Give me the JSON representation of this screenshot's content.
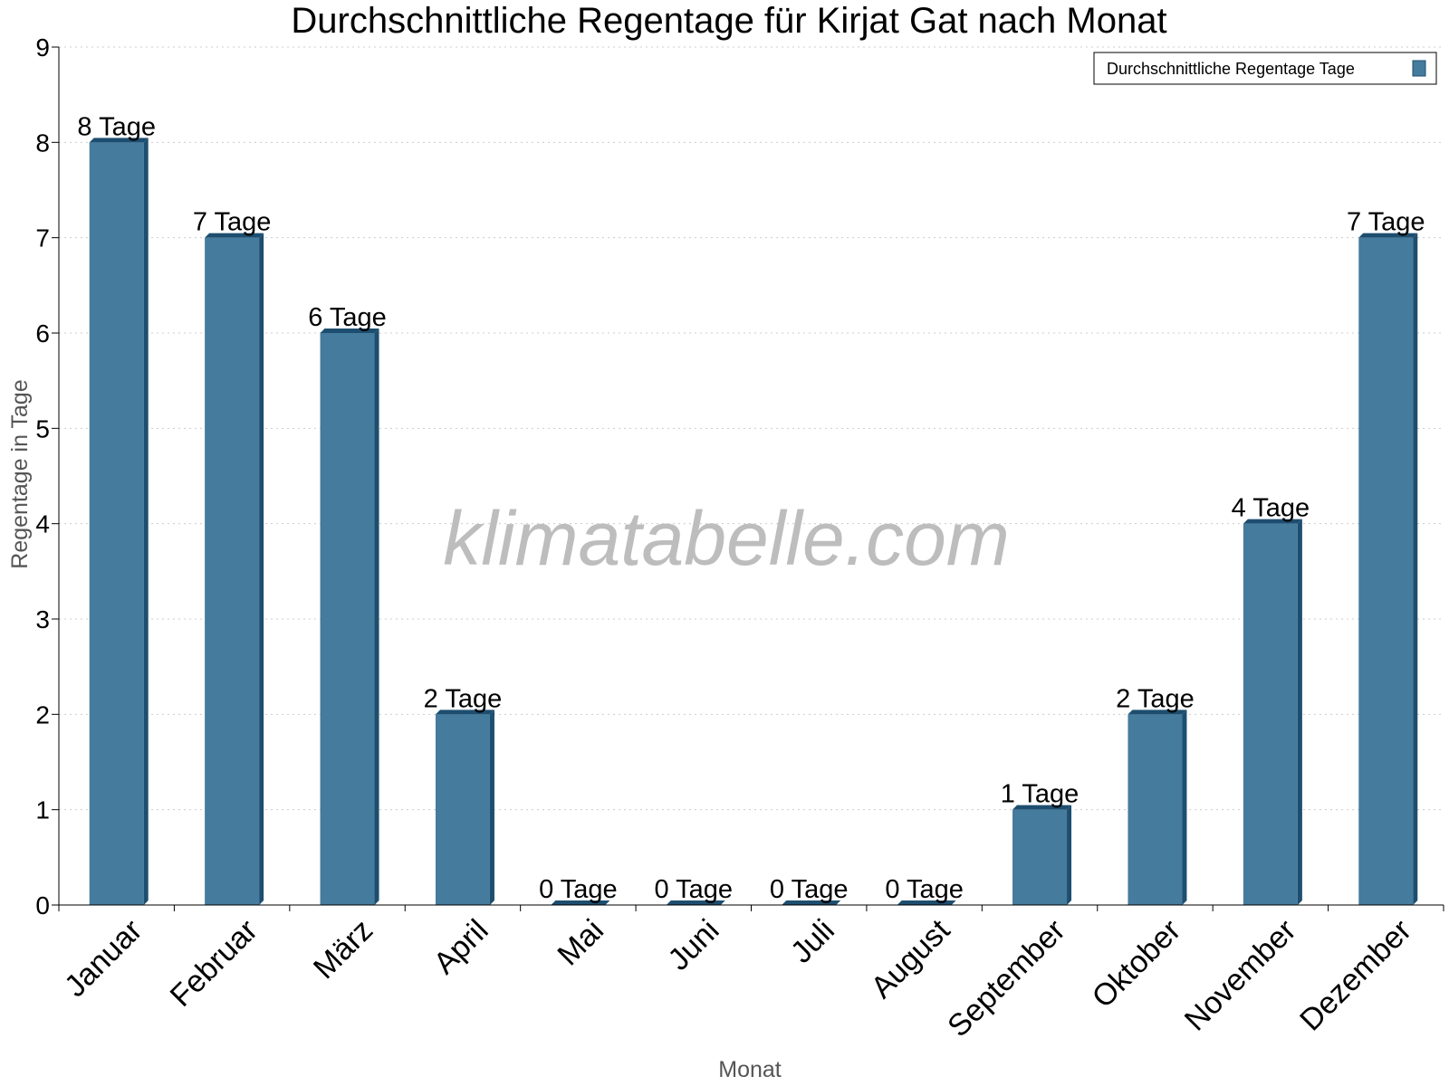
{
  "chart_data": {
    "type": "bar",
    "title": "Durchschnittliche Regentage für Kirjat Gat nach Monat",
    "xlabel": "Monat",
    "ylabel": "Regentage in Tage",
    "ylim": [
      0,
      9
    ],
    "yticks": [
      "0",
      "1",
      "2",
      "3",
      "4",
      "5",
      "6",
      "7",
      "8",
      "9"
    ],
    "grid": true,
    "legend_position": "top-right",
    "categories": [
      "Januar",
      "Februar",
      "März",
      "April",
      "Mai",
      "Juni",
      "Juli",
      "August",
      "September",
      "Oktober",
      "November",
      "Dezember"
    ],
    "series": [
      {
        "name": "Durchschnittliche Regentage Tage",
        "values": [
          8,
          7,
          6,
          2,
          0,
          0,
          0,
          0,
          1,
          2,
          4,
          7
        ],
        "data_labels": [
          "8 Tage",
          "7 Tage",
          "6 Tage",
          "2 Tage",
          "0 Tage",
          "0 Tage",
          "0 Tage",
          "0 Tage",
          "1 Tage",
          "2 Tage",
          "4 Tage",
          "7 Tage"
        ]
      }
    ],
    "watermark": "klimatabelle.com",
    "colors": {
      "bar": "#457b9d",
      "bar_side": "#1d4e6f",
      "grid": "#cccccc",
      "axis": "#000000"
    }
  }
}
